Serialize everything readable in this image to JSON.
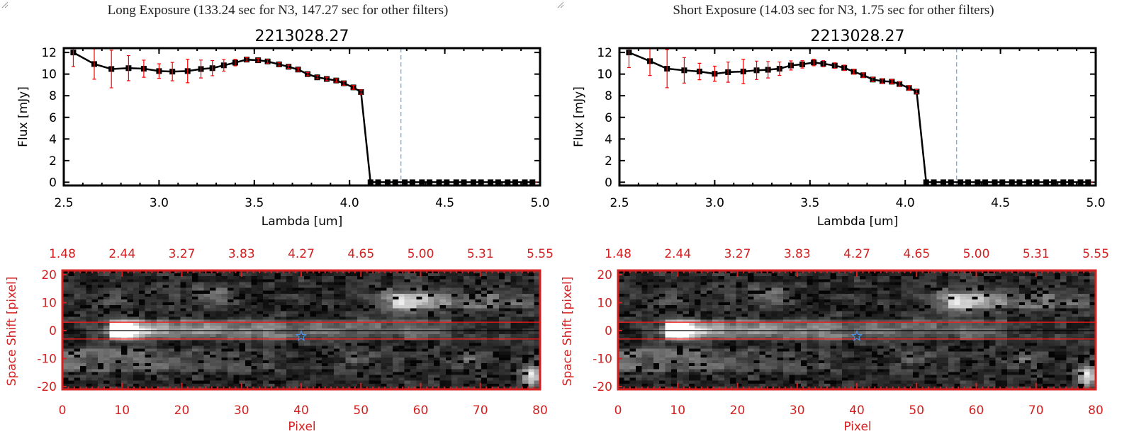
{
  "chart_data": [
    {
      "type": "line",
      "panel_title": "Long Exposure (133.24 sec for N3, 147.27 sec for other filters)",
      "title": "2213028.27",
      "xlabel": "Lambda [um]",
      "ylabel": "Flux [mJy]",
      "xlim": [
        2.5,
        5.0
      ],
      "ylim": [
        -0.3,
        12.4
      ],
      "xticks": [
        "2.5",
        "3.0",
        "3.5",
        "4.0",
        "4.5",
        "5.0"
      ],
      "yticks": [
        "0",
        "2",
        "4",
        "6",
        "8",
        "10",
        "12"
      ],
      "x": [
        2.55,
        2.66,
        2.75,
        2.84,
        2.92,
        3.0,
        3.07,
        3.15,
        3.22,
        3.28,
        3.34,
        3.4,
        3.46,
        3.52,
        3.57,
        3.63,
        3.68,
        3.73,
        3.78,
        3.83,
        3.88,
        3.93,
        3.97,
        4.02,
        4.06,
        4.11,
        4.15,
        4.2,
        4.24,
        4.29,
        4.33,
        4.38,
        4.42,
        4.47,
        4.51,
        4.56,
        4.6,
        4.65,
        4.69,
        4.74,
        4.78,
        4.83,
        4.87,
        4.92,
        4.96
      ],
      "y": [
        12.0,
        10.93,
        10.47,
        10.55,
        10.5,
        10.28,
        10.23,
        10.28,
        10.47,
        10.55,
        10.81,
        11.06,
        11.34,
        11.28,
        11.17,
        10.9,
        10.68,
        10.42,
        10.0,
        9.7,
        9.55,
        9.41,
        9.15,
        8.77,
        8.34,
        0,
        0,
        0,
        0,
        0,
        0,
        0,
        0,
        0,
        0,
        0,
        0,
        0,
        0,
        0,
        0,
        0,
        0,
        0,
        0
      ],
      "yerr": [
        1.3,
        1.4,
        1.74,
        1.16,
        0.79,
        0.67,
        0.85,
        1.08,
        0.83,
        0.7,
        0.54,
        0.3,
        0.18,
        0.16,
        0.16,
        0.15,
        0.15,
        0.15,
        0.15,
        0.15,
        0.15,
        0.15,
        0.18,
        0.18,
        0.2,
        0,
        0,
        0,
        0,
        0,
        0,
        0,
        0,
        0,
        0,
        0,
        0,
        0,
        0,
        0,
        0,
        0,
        0,
        0,
        0
      ],
      "vline": 4.27,
      "colors": {
        "line": "#000000",
        "errorbar": "#ff0000",
        "vline": "#4a90e2",
        "zero_line": "#ff0000"
      },
      "image": {
        "type": "heatmap",
        "xlabel": "Pixel",
        "ylabel": "Space Shift [pixel]",
        "xlim": [
          0,
          80
        ],
        "ylim": [
          -21,
          21.5
        ],
        "xticks": [
          "0",
          "10",
          "20",
          "30",
          "40",
          "50",
          "60",
          "70",
          "80"
        ],
        "top_ticks": [
          "1.48",
          "2.44",
          "3.27",
          "3.83",
          "4.27",
          "4.65",
          "5.00",
          "5.31",
          "5.55"
        ],
        "yticks": [
          "-20",
          "-10",
          "0",
          "10",
          "20"
        ],
        "aperture": [
          -3,
          3
        ],
        "center_line": 0,
        "marker": {
          "shape": "star",
          "x": 40,
          "y": -2,
          "color": "#4a90e2"
        },
        "colormap": "grayscale",
        "axis_color": "#d42020"
      }
    },
    {
      "type": "line",
      "panel_title": "Short Exposure (14.03 sec for N3, 1.75 sec for other filters)",
      "title": "2213028.27",
      "xlabel": "Lambda [um]",
      "ylabel": "Flux [mJy]",
      "xlim": [
        2.5,
        5.0
      ],
      "ylim": [
        -0.3,
        12.4
      ],
      "xticks": [
        "2.5",
        "3.0",
        "3.5",
        "4.0",
        "4.5",
        "5.0"
      ],
      "yticks": [
        "0",
        "2",
        "4",
        "6",
        "8",
        "10",
        "12"
      ],
      "x": [
        2.55,
        2.66,
        2.75,
        2.84,
        2.92,
        3.0,
        3.07,
        3.15,
        3.22,
        3.28,
        3.34,
        3.4,
        3.46,
        3.52,
        3.57,
        3.63,
        3.68,
        3.73,
        3.78,
        3.83,
        3.88,
        3.93,
        3.97,
        4.02,
        4.06,
        4.11,
        4.15,
        4.2,
        4.24,
        4.29,
        4.33,
        4.38,
        4.42,
        4.47,
        4.51,
        4.56,
        4.6,
        4.65,
        4.69,
        4.74,
        4.78,
        4.83,
        4.87,
        4.92,
        4.96
      ],
      "y": [
        12.0,
        11.2,
        10.5,
        10.35,
        10.24,
        10.03,
        10.18,
        10.24,
        10.35,
        10.4,
        10.5,
        10.8,
        10.9,
        11.07,
        10.96,
        10.79,
        10.58,
        10.22,
        9.9,
        9.5,
        9.35,
        9.3,
        9.08,
        8.72,
        8.38,
        0,
        0,
        0,
        0,
        0,
        0,
        0,
        0,
        0,
        0,
        0,
        0,
        0,
        0,
        0,
        0,
        0,
        0,
        0,
        0
      ],
      "yerr": [
        1.4,
        1.33,
        1.76,
        1.18,
        0.76,
        0.7,
        0.93,
        1.12,
        0.85,
        0.76,
        0.62,
        0.42,
        0.34,
        0.3,
        0.28,
        0.25,
        0.25,
        0.22,
        0.2,
        0.2,
        0.2,
        0.2,
        0.2,
        0.2,
        0.2,
        0,
        0,
        0,
        0,
        0,
        0,
        0,
        0,
        0,
        0,
        0,
        0,
        0,
        0,
        0,
        0,
        0,
        0,
        0,
        0
      ],
      "vline": 4.27,
      "colors": {
        "line": "#000000",
        "errorbar": "#ff0000",
        "vline": "#4a90e2",
        "zero_line": "#ff0000"
      },
      "image": {
        "type": "heatmap",
        "xlabel": "Pixel",
        "ylabel": "Space Shift [pixel]",
        "xlim": [
          0,
          80
        ],
        "ylim": [
          -21,
          21.5
        ],
        "xticks": [
          "0",
          "10",
          "20",
          "30",
          "40",
          "50",
          "60",
          "70",
          "80"
        ],
        "top_ticks": [
          "1.48",
          "2.44",
          "3.27",
          "3.83",
          "4.27",
          "4.65",
          "5.00",
          "5.31",
          "5.55"
        ],
        "yticks": [
          "-20",
          "-10",
          "0",
          "10",
          "20"
        ],
        "aperture": [
          -3,
          3
        ],
        "center_line": 0,
        "marker": {
          "shape": "star",
          "x": 40,
          "y": -2,
          "color": "#4a90e2"
        },
        "colormap": "grayscale",
        "axis_color": "#d42020"
      }
    }
  ]
}
